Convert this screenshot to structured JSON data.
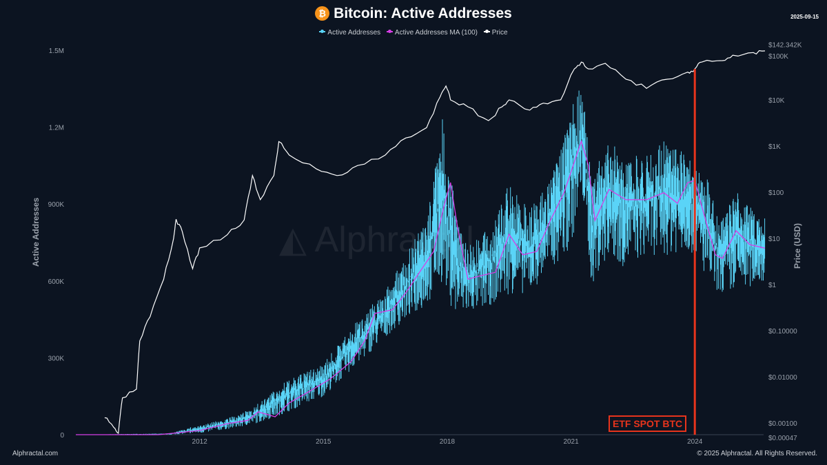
{
  "header": {
    "title": "Bitcoin: Active Addresses",
    "logo_icon": "bitcoin-icon",
    "date": "2025-09-15"
  },
  "footer": {
    "left": "Alphractal.com",
    "right": "© 2025 Alphractal. All Rights Reserved."
  },
  "watermark": "Alphractal",
  "colors": {
    "background": "#0c1421",
    "active_addresses": "#5ad4f7",
    "ma": "#d63ee6",
    "price": "#ffffff",
    "etf": "#e8341c"
  },
  "chart_data": {
    "type": "line",
    "title": "Bitcoin: Active Addresses",
    "legend": {
      "placement": "top",
      "entries": [
        "Active Addresses",
        "Active Addresses MA (100)",
        "Price"
      ]
    },
    "xlabel": "",
    "ylabel_left": "Active Addresses",
    "ylabel_right": "Price (USD)",
    "x_range": [
      2009.0,
      2025.7
    ],
    "x_ticks": [
      "2012",
      "2015",
      "2018",
      "2021",
      "2024"
    ],
    "y_left_range": [
      0,
      1500000
    ],
    "y_left_ticks": [
      "0",
      "300K",
      "600K",
      "900K",
      "1.2M",
      "1.5M"
    ],
    "y_right_scale": "log",
    "y_right_range": [
      0.00047,
      142342
    ],
    "y_right_ticks": [
      "$142.342K",
      "$100K",
      "$10K",
      "$1K",
      "$100",
      "$10",
      "$1",
      "$0.10000",
      "$0.01000",
      "$0.00100",
      "$0.00047"
    ],
    "grid": false,
    "annotation": {
      "label": "ETF SPOT BTC",
      "x": 2024.0
    },
    "series": [
      {
        "name": "Active Addresses",
        "axis": "left",
        "format": "[year, low, high]",
        "values": [
          [
            2009.0,
            0,
            0
          ],
          [
            2011.3,
            0,
            5000
          ],
          [
            2011.8,
            5000,
            30000
          ],
          [
            2012.0,
            5000,
            35000
          ],
          [
            2013.0,
            30000,
            80000
          ],
          [
            2013.5,
            50000,
            130000
          ],
          [
            2014.0,
            80000,
            200000
          ],
          [
            2015.0,
            150000,
            280000
          ],
          [
            2016.0,
            300000,
            480000
          ],
          [
            2016.5,
            380000,
            560000
          ],
          [
            2017.0,
            450000,
            700000
          ],
          [
            2017.5,
            500000,
            850000
          ],
          [
            2017.9,
            600000,
            1250000
          ],
          [
            2018.1,
            500000,
            1000000
          ],
          [
            2018.25,
            450000,
            860000
          ],
          [
            2018.5,
            470000,
            750000
          ],
          [
            2019.0,
            500000,
            800000
          ],
          [
            2019.5,
            550000,
            980000
          ],
          [
            2020.0,
            550000,
            880000
          ],
          [
            2020.5,
            650000,
            1000000
          ],
          [
            2020.9,
            700000,
            1200000
          ],
          [
            2021.1,
            800000,
            1350000
          ],
          [
            2021.3,
            900000,
            1360000
          ],
          [
            2021.5,
            580000,
            1000000
          ],
          [
            2021.9,
            700000,
            1150000
          ],
          [
            2022.3,
            650000,
            1100000
          ],
          [
            2022.8,
            700000,
            1100000
          ],
          [
            2023.3,
            700000,
            1150000
          ],
          [
            2023.8,
            720000,
            1100000
          ],
          [
            2024.0,
            700000,
            1050000
          ],
          [
            2024.3,
            600000,
            1000000
          ],
          [
            2024.6,
            550000,
            820000
          ],
          [
            2025.0,
            550000,
            950000
          ],
          [
            2025.4,
            580000,
            880000
          ],
          [
            2025.7,
            600000,
            850000
          ]
        ]
      },
      {
        "name": "Active Addresses MA (100)",
        "axis": "left",
        "format": "[year, value]",
        "values": [
          [
            2009.0,
            0
          ],
          [
            2011.0,
            0
          ],
          [
            2011.5,
            8000
          ],
          [
            2012.0,
            16000
          ],
          [
            2012.67,
            43000
          ],
          [
            2013.17,
            56000
          ],
          [
            2013.42,
            89000
          ],
          [
            2013.83,
            70000
          ],
          [
            2014.17,
            124000
          ],
          [
            2014.67,
            170000
          ],
          [
            2015.17,
            218000
          ],
          [
            2015.67,
            285000
          ],
          [
            2016.0,
            366000
          ],
          [
            2016.25,
            473000
          ],
          [
            2016.67,
            487000
          ],
          [
            2017.0,
            554000
          ],
          [
            2017.33,
            634000
          ],
          [
            2017.67,
            715000
          ],
          [
            2017.92,
            890000
          ],
          [
            2018.08,
            984000
          ],
          [
            2018.25,
            809000
          ],
          [
            2018.5,
            607000
          ],
          [
            2018.83,
            621000
          ],
          [
            2019.17,
            634000
          ],
          [
            2019.5,
            782000
          ],
          [
            2019.83,
            702000
          ],
          [
            2020.17,
            715000
          ],
          [
            2020.5,
            836000
          ],
          [
            2020.83,
            944000
          ],
          [
            2021.25,
            1145000
          ],
          [
            2021.42,
            1051000
          ],
          [
            2021.58,
            836000
          ],
          [
            2021.92,
            957000
          ],
          [
            2022.33,
            917000
          ],
          [
            2022.83,
            917000
          ],
          [
            2023.25,
            944000
          ],
          [
            2023.58,
            903000
          ],
          [
            2023.83,
            984000
          ],
          [
            2024.0,
            992000
          ],
          [
            2024.17,
            890000
          ],
          [
            2024.5,
            702000
          ],
          [
            2024.67,
            688000
          ],
          [
            2025.0,
            796000
          ],
          [
            2025.33,
            742000
          ],
          [
            2025.7,
            728000
          ]
        ]
      },
      {
        "name": "Price",
        "axis": "right",
        "format": "[year, usd]",
        "values": [
          [
            2009.7,
            0.0013
          ],
          [
            2009.92,
            0.0008
          ],
          [
            2010.03,
            0.0006
          ],
          [
            2010.13,
            0.0035
          ],
          [
            2010.47,
            0.0054
          ],
          [
            2010.55,
            0.06
          ],
          [
            2010.8,
            0.2
          ],
          [
            2011.13,
            1.3
          ],
          [
            2011.37,
            10
          ],
          [
            2011.43,
            26
          ],
          [
            2011.58,
            14
          ],
          [
            2011.83,
            2.2
          ],
          [
            2012.0,
            6.2
          ],
          [
            2012.67,
            12
          ],
          [
            2013.08,
            25
          ],
          [
            2013.28,
            230
          ],
          [
            2013.47,
            69
          ],
          [
            2013.8,
            230
          ],
          [
            2013.92,
            1250
          ],
          [
            2014.17,
            640
          ],
          [
            2014.83,
            320
          ],
          [
            2015.33,
            230
          ],
          [
            2015.83,
            380
          ],
          [
            2016.5,
            640
          ],
          [
            2017.0,
            1500
          ],
          [
            2017.5,
            2500
          ],
          [
            2017.83,
            11700
          ],
          [
            2017.97,
            20000
          ],
          [
            2018.08,
            10000
          ],
          [
            2018.5,
            7100
          ],
          [
            2019.0,
            3550
          ],
          [
            2019.33,
            7100
          ],
          [
            2019.5,
            10000
          ],
          [
            2020.0,
            6000
          ],
          [
            2020.33,
            8500
          ],
          [
            2020.75,
            10000
          ],
          [
            2021.08,
            47000
          ],
          [
            2021.25,
            66000
          ],
          [
            2021.42,
            47000
          ],
          [
            2021.83,
            62000
          ],
          [
            2022.33,
            28000
          ],
          [
            2022.83,
            17800
          ],
          [
            2023.33,
            28000
          ],
          [
            2023.83,
            40000
          ],
          [
            2024.0,
            47000
          ],
          [
            2024.17,
            66000
          ],
          [
            2024.67,
            71000
          ],
          [
            2024.92,
            93000
          ],
          [
            2025.42,
            106000
          ],
          [
            2025.7,
            115000
          ]
        ]
      }
    ]
  }
}
